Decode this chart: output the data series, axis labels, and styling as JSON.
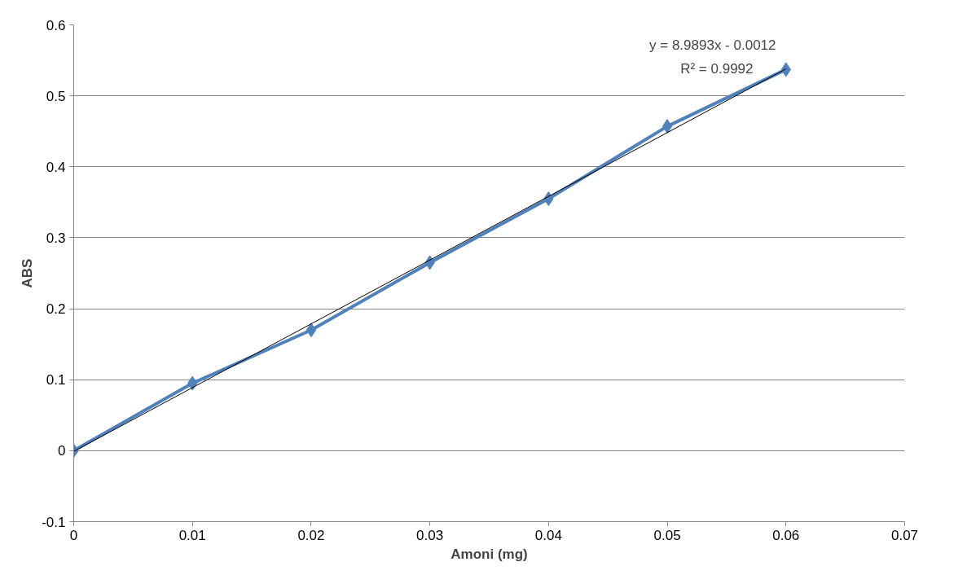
{
  "chart_data": {
    "type": "line",
    "xlabel": "Amoni (mg)",
    "ylabel": "ABS",
    "x": [
      0,
      0.01,
      0.02,
      0.03,
      0.04,
      0.05,
      0.06
    ],
    "series": [
      {
        "color": "#4f81bd",
        "values": [
          0,
          0.095,
          0.17,
          0.265,
          0.355,
          0.457,
          0.537
        ],
        "marker": "diamond"
      },
      {
        "type": "line",
        "color": "#000000",
        "x": [
          0,
          0.06
        ],
        "values": [
          -0.001,
          0.538
        ],
        "marker": "none"
      }
    ],
    "xlim": [
      0,
      0.07
    ],
    "xticks": [
      0,
      0.01,
      0.02,
      0.03,
      0.04,
      0.05,
      0.06,
      0.07
    ],
    "ylim": [
      -0.1,
      0.6
    ],
    "yticks": [
      -0.1,
      0,
      0.1,
      0.2,
      0.3,
      0.4,
      0.5,
      0.6
    ],
    "grid": "y",
    "annotations": [
      "y = 8.9893x - 0.0012",
      "R² = 0.9992"
    ]
  }
}
